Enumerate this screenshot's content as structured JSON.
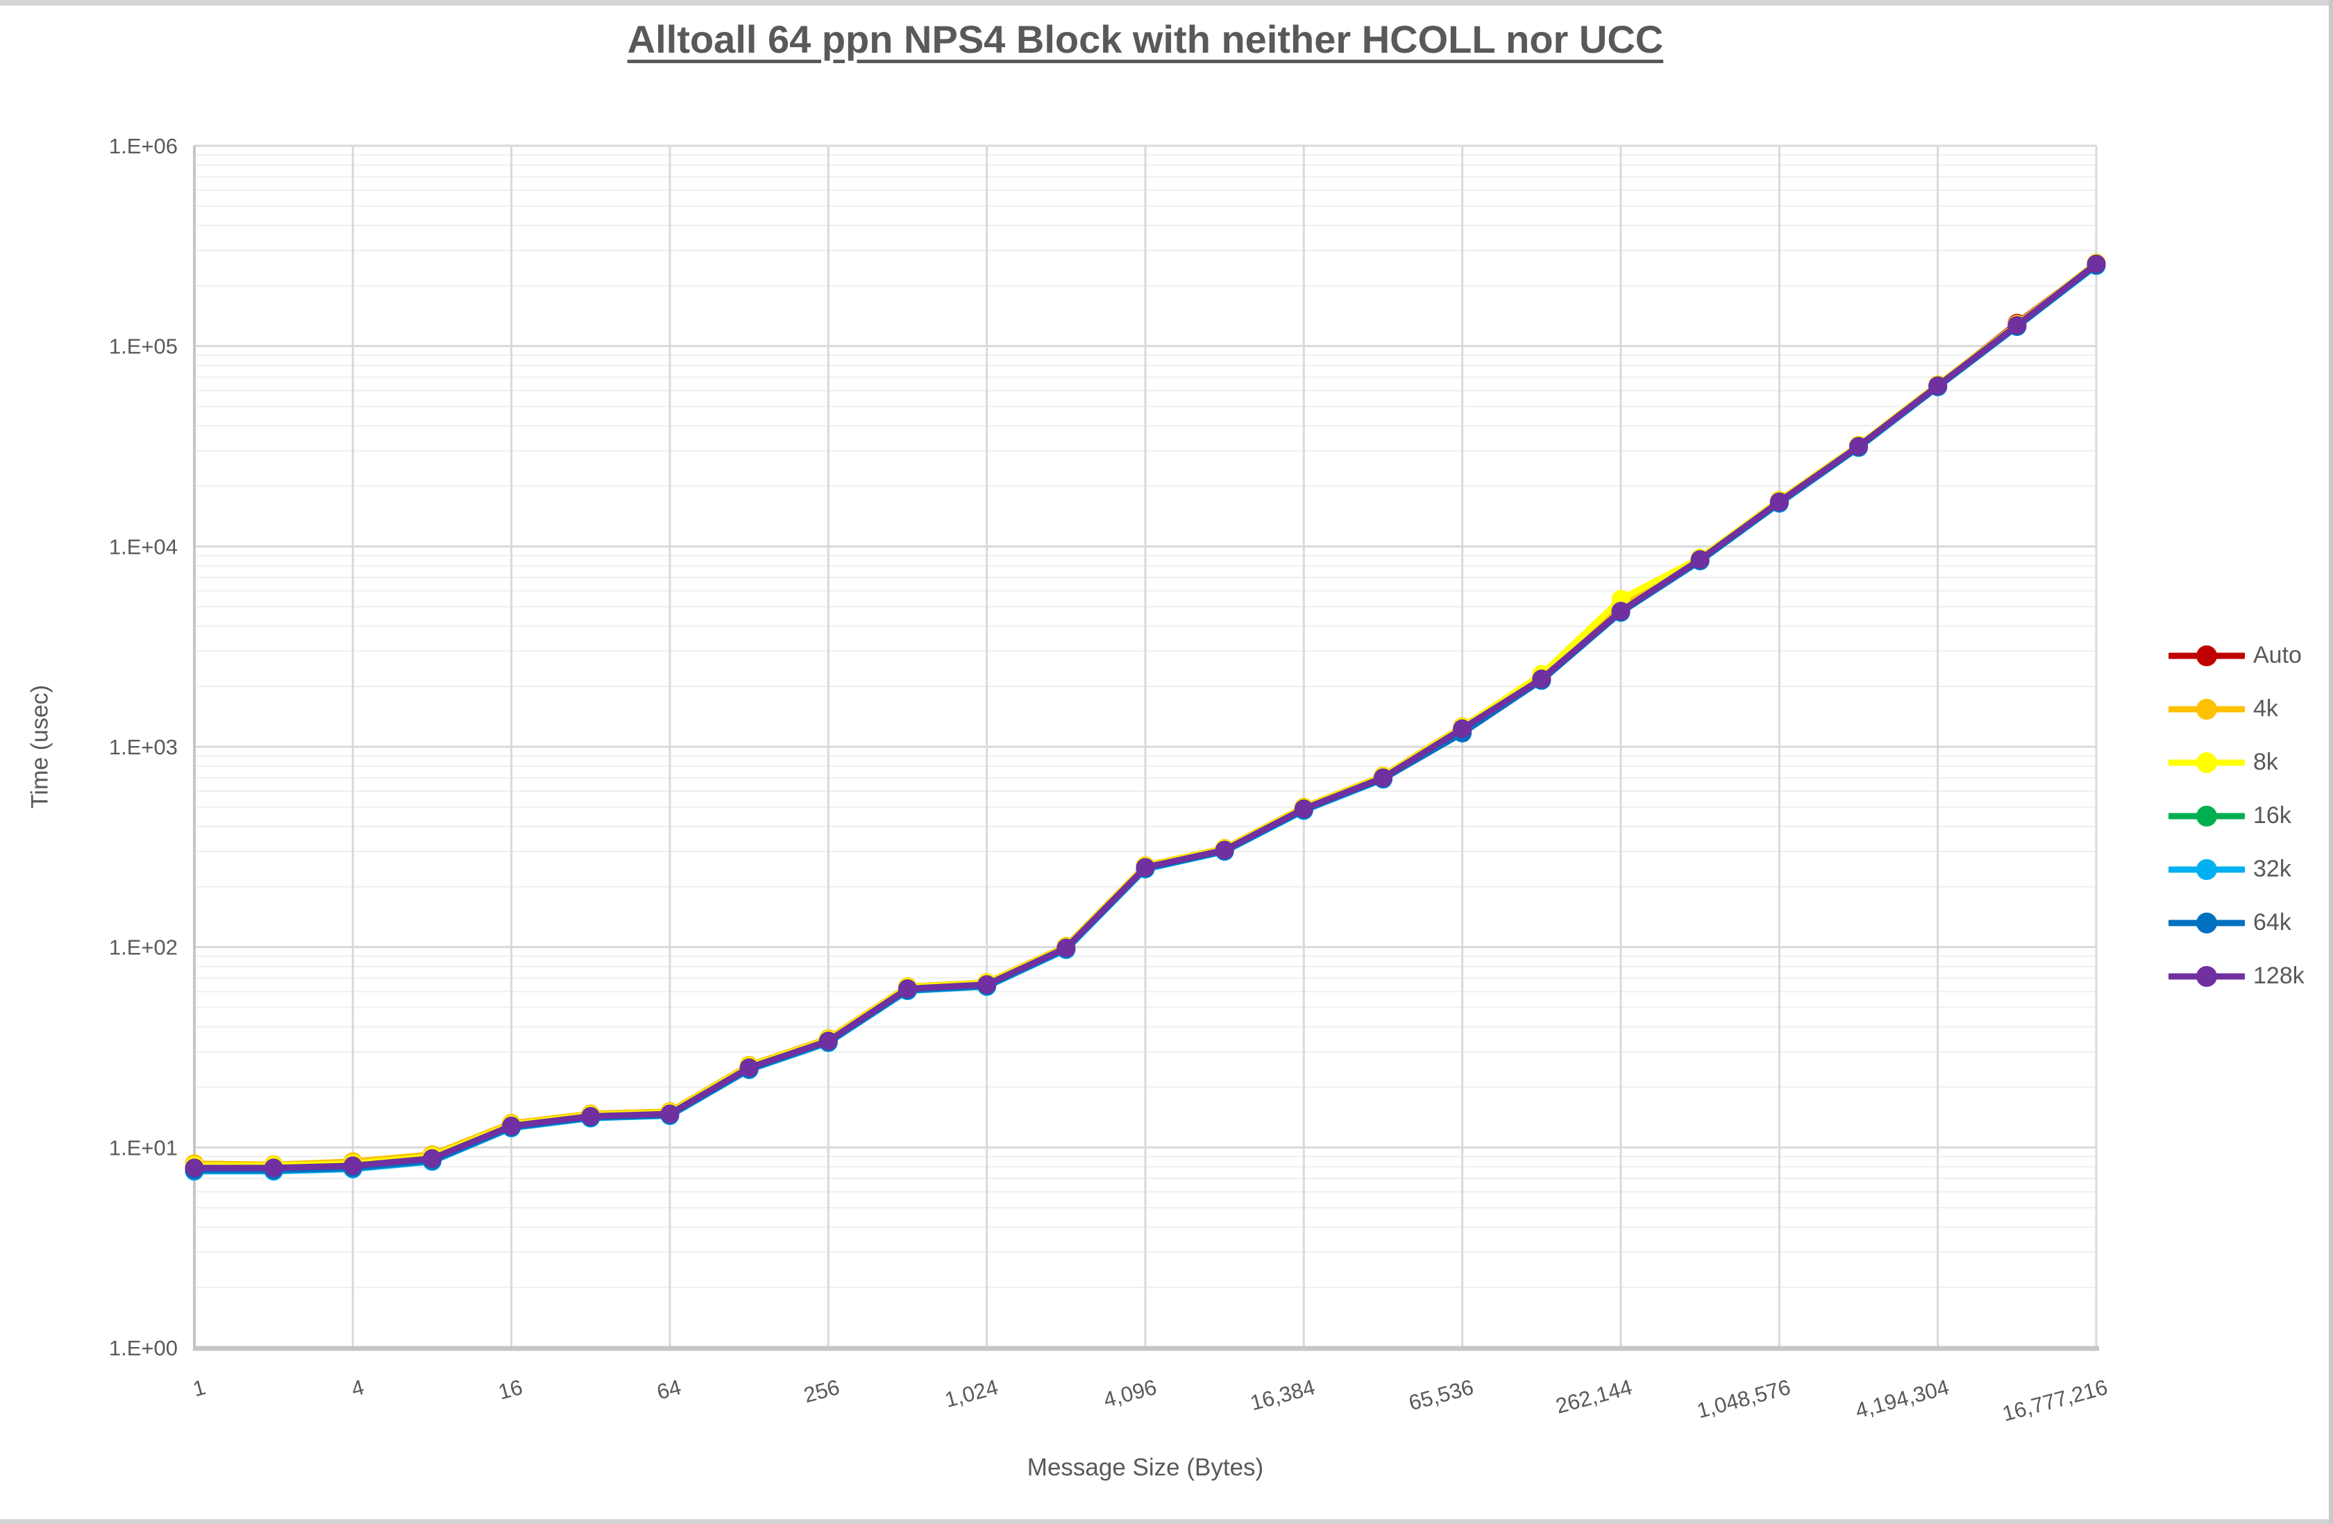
{
  "title": "Alltoall 64 ppn NPS4 Block with neither HCOLL nor UCC",
  "chart_data": {
    "type": "line",
    "title": "Alltoall 64 ppn NPS4 Block with neither HCOLL nor UCC",
    "xlabel": "Message Size (Bytes)",
    "ylabel": "Time (usec)",
    "x_scale": "log2",
    "y_scale": "log10",
    "xlim": [
      1,
      16777216
    ],
    "ylim": [
      1,
      1000000
    ],
    "grid": "major and minor, light gray",
    "legend_position": "right",
    "x_ticks": [
      {
        "label": "1",
        "value": 1
      },
      {
        "label": "4",
        "value": 4
      },
      {
        "label": "16",
        "value": 16
      },
      {
        "label": "64",
        "value": 64
      },
      {
        "label": "256",
        "value": 256
      },
      {
        "label": "1,024",
        "value": 1024
      },
      {
        "label": "4,096",
        "value": 4096
      },
      {
        "label": "16,384",
        "value": 16384
      },
      {
        "label": "65,536",
        "value": 65536
      },
      {
        "label": "262,144",
        "value": 262144
      },
      {
        "label": "1,048,576",
        "value": 1048576
      },
      {
        "label": "4,194,304",
        "value": 4194304
      },
      {
        "label": "16,777,216",
        "value": 16777216
      }
    ],
    "y_ticks": [
      {
        "label": "1.E+00",
        "value": 1
      },
      {
        "label": "1.E+01",
        "value": 10
      },
      {
        "label": "1.E+02",
        "value": 100
      },
      {
        "label": "1.E+03",
        "value": 1000
      },
      {
        "label": "1.E+04",
        "value": 10000
      },
      {
        "label": "1.E+05",
        "value": 100000
      },
      {
        "label": "1.E+06",
        "value": 1000000
      }
    ],
    "x": [
      1,
      2,
      4,
      8,
      16,
      32,
      64,
      128,
      256,
      512,
      1024,
      2048,
      4096,
      8192,
      16384,
      32768,
      65536,
      131072,
      262144,
      524288,
      1048576,
      2097152,
      4194304,
      8388608,
      16777216
    ],
    "series": [
      {
        "name": "Auto",
        "color": "#C00000",
        "values": [
          8.0,
          8.0,
          8.2,
          8.9,
          12.9,
          14.4,
          14.8,
          25.2,
          34.2,
          62.5,
          65.5,
          99.5,
          251,
          307,
          492,
          705,
          1240,
          2200,
          4800,
          8650,
          16800,
          31800,
          63700,
          130000,
          258000
        ]
      },
      {
        "name": "4k",
        "color": "#FFC000",
        "values": [
          8.3,
          8.2,
          8.5,
          9.2,
          13.2,
          14.7,
          15.1,
          25.7,
          34.9,
          63.5,
          66.5,
          101,
          255,
          311,
          500,
          715,
          1260,
          2250,
          5100,
          8700,
          17000,
          32000,
          64200,
          128500,
          260000
        ]
      },
      {
        "name": "8k",
        "color": "#FFFF00",
        "values": [
          8.1,
          8.1,
          8.3,
          9.0,
          13.0,
          14.5,
          14.9,
          25.4,
          34.5,
          63,
          66,
          100,
          253,
          309,
          496,
          710,
          1250,
          2300,
          5450,
          8750,
          16900,
          31900,
          63900,
          128000,
          259000
        ]
      },
      {
        "name": "16k",
        "color": "#00B050",
        "values": [
          7.8,
          7.8,
          8.0,
          8.7,
          12.7,
          14.2,
          14.6,
          24.8,
          33.8,
          61.5,
          64.5,
          98.5,
          248,
          303,
          486,
          695,
          1210,
          2160,
          4720,
          8550,
          16600,
          31400,
          63000,
          126000,
          255000
        ]
      },
      {
        "name": "32k",
        "color": "#00B0F0",
        "values": [
          7.6,
          7.6,
          7.8,
          8.5,
          12.5,
          14.0,
          14.4,
          24.4,
          33.3,
          60.5,
          63.5,
          97,
          245,
          300,
          480,
          688,
          1200,
          2140,
          4680,
          8450,
          16400,
          31100,
          62500,
          125000,
          252000
        ]
      },
      {
        "name": "64k",
        "color": "#0070C0",
        "values": [
          7.7,
          7.7,
          7.9,
          8.6,
          12.6,
          14.1,
          14.5,
          24.6,
          33.6,
          61,
          64,
          98,
          247,
          302,
          484,
          692,
          1170,
          2150,
          4700,
          8500,
          16500,
          31300,
          62800,
          125500,
          254000
        ]
      },
      {
        "name": "128k",
        "color": "#7030A0",
        "values": [
          7.9,
          7.9,
          8.1,
          8.8,
          12.8,
          14.3,
          14.7,
          25.0,
          34.0,
          62,
          65,
          99,
          250,
          305,
          490,
          700,
          1230,
          2180,
          4750,
          8600,
          16700,
          31600,
          63400,
          127000,
          257000
        ]
      }
    ]
  }
}
